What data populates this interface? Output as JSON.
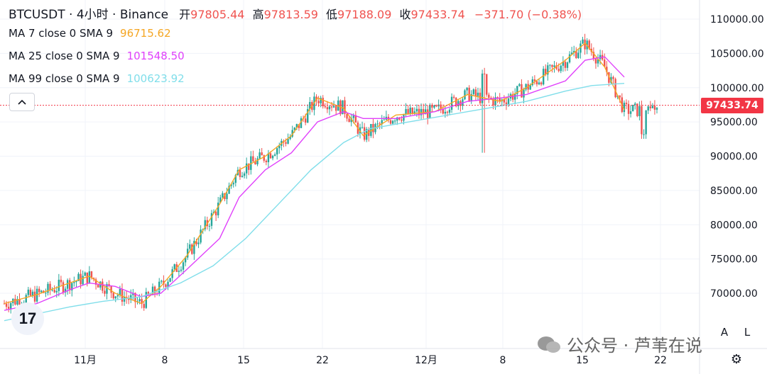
{
  "header": {
    "symbol": "BTCUSDT · 4小时 · Binance",
    "open_label": "开",
    "open": "97805.44",
    "high_label": "高",
    "high": "97813.59",
    "low_label": "低",
    "low": "97188.09",
    "close_label": "收",
    "close": "97433.74",
    "change": "−371.70 (−0.38%)"
  },
  "indicators": [
    {
      "label": "MA 7 close 0 SMA 9",
      "value": "96715.62",
      "color": "#f5a623"
    },
    {
      "label": "MA 25 close 0 SMA 9",
      "value": "101548.50",
      "color": "#e040fb"
    },
    {
      "label": "MA 99 close 0 SMA 9",
      "value": "100623.92",
      "color": "#80deea"
    }
  ],
  "collapse_icon": "chevron-up-icon",
  "last_price_tag": "97433.74",
  "corner_buttons": {
    "auto": "A",
    "log": "L"
  },
  "watermark": "公众号 · 芦苇在说",
  "colors": {
    "up": "#26a69a",
    "down": "#ef5350",
    "last_price": "#f23645"
  },
  "chart_data": {
    "type": "candlestick",
    "y_axis_ticks": [
      "110000.00",
      "105000.00",
      "100000.00",
      "95000.00",
      "90000.00",
      "85000.00",
      "80000.00",
      "75000.00",
      "70000.00"
    ],
    "ylim": [
      65000,
      111500
    ],
    "x_axis_ticks": [
      "11月",
      "8",
      "15",
      "22",
      "12月",
      "8",
      "15",
      "22"
    ],
    "last_price": 97433.74,
    "series": [
      {
        "name": "MA 7",
        "points": [
          [
            0,
            68500
          ],
          [
            0.05,
            69800
          ],
          [
            0.1,
            71500
          ],
          [
            0.13,
            72500
          ],
          [
            0.17,
            70000
          ],
          [
            0.21,
            68500
          ],
          [
            0.24,
            71000
          ],
          [
            0.28,
            75500
          ],
          [
            0.33,
            83000
          ],
          [
            0.36,
            88000
          ],
          [
            0.4,
            90000
          ],
          [
            0.44,
            93000
          ],
          [
            0.48,
            98500
          ],
          [
            0.52,
            97000
          ],
          [
            0.55,
            93000
          ],
          [
            0.6,
            96000
          ],
          [
            0.66,
            96500
          ],
          [
            0.71,
            99000
          ],
          [
            0.76,
            98000
          ],
          [
            0.8,
            100000
          ],
          [
            0.86,
            104000
          ],
          [
            0.89,
            106500
          ],
          [
            0.92,
            103000
          ],
          [
            0.95,
            96715.62
          ]
        ]
      },
      {
        "name": "MA 25",
        "points": [
          [
            0,
            67500
          ],
          [
            0.05,
            68500
          ],
          [
            0.1,
            70500
          ],
          [
            0.13,
            71500
          ],
          [
            0.17,
            71000
          ],
          [
            0.21,
            69500
          ],
          [
            0.24,
            70000
          ],
          [
            0.28,
            73500
          ],
          [
            0.33,
            78000
          ],
          [
            0.36,
            84000
          ],
          [
            0.4,
            88000
          ],
          [
            0.44,
            90500
          ],
          [
            0.48,
            95000
          ],
          [
            0.52,
            96500
          ],
          [
            0.55,
            95500
          ],
          [
            0.6,
            95500
          ],
          [
            0.66,
            96500
          ],
          [
            0.71,
            98000
          ],
          [
            0.76,
            98500
          ],
          [
            0.8,
            99000
          ],
          [
            0.86,
            101000
          ],
          [
            0.89,
            104000
          ],
          [
            0.92,
            104500
          ],
          [
            0.95,
            101548.5
          ]
        ]
      },
      {
        "name": "MA 99",
        "points": [
          [
            0,
            66000
          ],
          [
            0.05,
            67000
          ],
          [
            0.1,
            68000
          ],
          [
            0.15,
            68800
          ],
          [
            0.21,
            69500
          ],
          [
            0.27,
            71500
          ],
          [
            0.32,
            74000
          ],
          [
            0.37,
            78000
          ],
          [
            0.42,
            83000
          ],
          [
            0.47,
            88000
          ],
          [
            0.52,
            92000
          ],
          [
            0.56,
            94000
          ],
          [
            0.62,
            95000
          ],
          [
            0.68,
            96000
          ],
          [
            0.74,
            97000
          ],
          [
            0.8,
            98000
          ],
          [
            0.86,
            99500
          ],
          [
            0.9,
            100300
          ],
          [
            0.95,
            100623.92
          ]
        ]
      }
    ]
  }
}
